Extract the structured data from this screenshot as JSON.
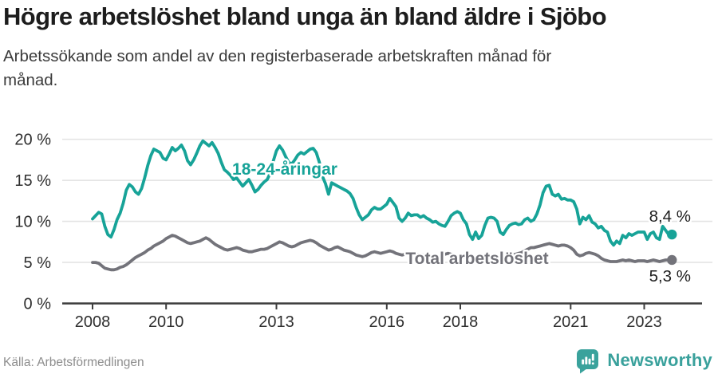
{
  "header": {
    "title": "Högre arbetslöshet bland unga än bland äldre i Sjöbo",
    "subtitle": "Arbetssökande som andel av den registerbaserade arbetskraften månad för\nmånad."
  },
  "footer": {
    "source": "Källa: Arbetsförmedlingen",
    "brand": "Newsworthy",
    "brand_icon": "newsworthy-speech-bubble-bar-chart-icon"
  },
  "colors": {
    "accent_teal": "#17a398",
    "series_gray": "#73737a",
    "brand_teal": "#3aa19c",
    "grid": "#e4e4e4",
    "axis": "#3d3d3d",
    "tick_text": "#2e2e2e",
    "end_label_text": "#1f1f1f",
    "title_text": "#1d1d1d",
    "subtitle_text": "#3b3b3b",
    "source_text": "#8d8d8d",
    "background": "#ffffff"
  },
  "chart_data": {
    "type": "line",
    "title": "Högre arbetslöshet bland unga än bland äldre i Sjöbo",
    "subtitle": "Arbetssökande som andel av den registerbaserade arbetskraften månad för månad.",
    "x_unit": "month",
    "x_start": "2008-01",
    "x_end": "2023-09",
    "ylim": [
      0,
      21.5
    ],
    "grid": true,
    "legend": "inline-labels",
    "yticks": [
      {
        "value": 0,
        "label": "0 %"
      },
      {
        "value": 5,
        "label": "5 %"
      },
      {
        "value": 10,
        "label": "10 %"
      },
      {
        "value": 15,
        "label": "15 %"
      },
      {
        "value": 20,
        "label": "20 %"
      }
    ],
    "xticks": [
      {
        "year": 2008,
        "label": "2008"
      },
      {
        "year": 2010,
        "label": "2010"
      },
      {
        "year": 2013,
        "label": "2013"
      },
      {
        "year": 2016,
        "label": "2016"
      },
      {
        "year": 2018,
        "label": "2018"
      },
      {
        "year": 2021,
        "label": "2021"
      },
      {
        "year": 2023,
        "label": "2023"
      }
    ],
    "series": [
      {
        "name": "18-24-åringar",
        "color": "#17a398",
        "end_label": "8,4 %",
        "last_value": 8.4,
        "values": [
          10.3,
          10.7,
          11.1,
          10.9,
          9.4,
          8.4,
          8.1,
          9.0,
          10.2,
          11.0,
          12.2,
          13.8,
          14.5,
          14.2,
          13.6,
          13.3,
          14.0,
          15.3,
          16.8,
          18.0,
          18.8,
          18.6,
          18.4,
          17.7,
          17.5,
          18.2,
          19.0,
          18.6,
          18.9,
          19.3,
          18.6,
          17.4,
          16.9,
          17.5,
          18.3,
          19.2,
          19.8,
          19.5,
          19.2,
          19.6,
          19.0,
          18.3,
          17.2,
          16.3,
          16.0,
          15.6,
          15.1,
          15.3,
          14.8,
          14.3,
          14.7,
          15.1,
          14.4,
          13.6,
          13.9,
          14.4,
          14.8,
          15.1,
          15.9,
          17.4,
          18.6,
          19.2,
          18.7,
          17.9,
          17.2,
          17.0,
          17.5,
          18.1,
          18.4,
          18.2,
          18.5,
          18.8,
          18.9,
          18.4,
          17.2,
          15.5,
          14.6,
          13.3,
          14.7,
          14.5,
          14.3,
          14.1,
          13.9,
          13.7,
          13.4,
          12.8,
          11.7,
          10.8,
          10.2,
          10.5,
          10.8,
          11.4,
          11.7,
          11.5,
          11.5,
          11.8,
          12.1,
          12.8,
          12.3,
          11.8,
          10.4,
          10.0,
          10.4,
          11.0,
          10.7,
          10.8,
          10.8,
          10.5,
          10.7,
          10.4,
          10.2,
          9.9,
          10.0,
          9.7,
          9.5,
          9.4,
          10.0,
          10.7,
          11.0,
          11.2,
          11.0,
          10.2,
          9.7,
          8.4,
          7.8,
          8.7,
          7.9,
          8.3,
          9.5,
          10.4,
          10.5,
          10.4,
          10.0,
          8.7,
          8.4,
          9.0,
          9.5,
          9.7,
          9.8,
          9.6,
          9.7,
          10.2,
          10.4,
          10.0,
          10.2,
          10.9,
          12.0,
          13.5,
          14.3,
          14.4,
          13.3,
          13.1,
          13.3,
          12.7,
          12.8,
          12.6,
          12.6,
          12.4,
          11.5,
          9.7,
          10.5,
          10.2,
          10.7,
          9.9,
          9.7,
          9.2,
          9.4,
          8.9,
          8.7,
          7.6,
          7.1,
          7.6,
          7.3,
          8.3,
          8.0,
          8.5,
          8.3,
          8.5,
          8.7,
          8.7,
          8.7,
          7.8,
          8.5,
          8.7,
          8.0,
          7.8,
          9.4,
          8.9,
          8.4
        ]
      },
      {
        "name": "Total arbetslöshet",
        "color": "#73737a",
        "end_label": "5,3 %",
        "last_value": 5.3,
        "values": [
          5.0,
          5.0,
          4.9,
          4.6,
          4.3,
          4.2,
          4.1,
          4.1,
          4.2,
          4.4,
          4.5,
          4.7,
          5.0,
          5.3,
          5.6,
          5.8,
          6.0,
          6.2,
          6.5,
          6.7,
          7.0,
          7.2,
          7.4,
          7.6,
          7.9,
          8.1,
          8.3,
          8.2,
          8.0,
          7.8,
          7.6,
          7.4,
          7.3,
          7.4,
          7.5,
          7.6,
          7.8,
          8.0,
          7.8,
          7.5,
          7.2,
          7.0,
          6.8,
          6.6,
          6.5,
          6.6,
          6.7,
          6.8,
          6.7,
          6.5,
          6.4,
          6.3,
          6.3,
          6.4,
          6.5,
          6.6,
          6.6,
          6.7,
          6.9,
          7.1,
          7.3,
          7.5,
          7.4,
          7.2,
          7.0,
          6.9,
          7.0,
          7.2,
          7.4,
          7.5,
          7.6,
          7.7,
          7.6,
          7.4,
          7.1,
          6.9,
          6.7,
          6.5,
          6.6,
          6.8,
          6.9,
          6.7,
          6.5,
          6.4,
          6.3,
          6.1,
          5.9,
          5.8,
          5.7,
          5.8,
          6.0,
          6.2,
          6.3,
          6.2,
          6.1,
          6.2,
          6.3,
          6.4,
          6.3,
          6.1,
          6.0,
          5.9,
          6.0,
          6.1,
          6.2,
          6.1,
          6.0,
          5.9,
          5.9,
          5.8,
          5.7,
          5.6,
          5.7,
          5.8,
          5.9,
          6.0,
          6.1,
          6.0,
          5.9,
          5.8,
          5.7,
          5.6,
          5.5,
          5.4,
          5.5,
          5.6,
          5.7,
          5.8,
          5.8,
          5.7,
          5.6,
          5.5,
          5.6,
          5.7,
          5.8,
          5.7,
          5.8,
          5.9,
          6.0,
          6.1,
          6.2,
          6.4,
          6.6,
          6.8,
          6.8,
          6.9,
          7.0,
          7.1,
          7.2,
          7.3,
          7.2,
          7.1,
          7.0,
          7.1,
          7.1,
          7.0,
          6.8,
          6.5,
          6.0,
          5.8,
          5.9,
          6.1,
          6.2,
          6.1,
          6.0,
          5.8,
          5.5,
          5.3,
          5.2,
          5.1,
          5.1,
          5.1,
          5.2,
          5.3,
          5.2,
          5.3,
          5.2,
          5.1,
          5.2,
          5.2,
          5.2,
          5.1,
          5.2,
          5.3,
          5.2,
          5.1,
          5.2,
          5.3,
          5.3
        ]
      }
    ]
  }
}
